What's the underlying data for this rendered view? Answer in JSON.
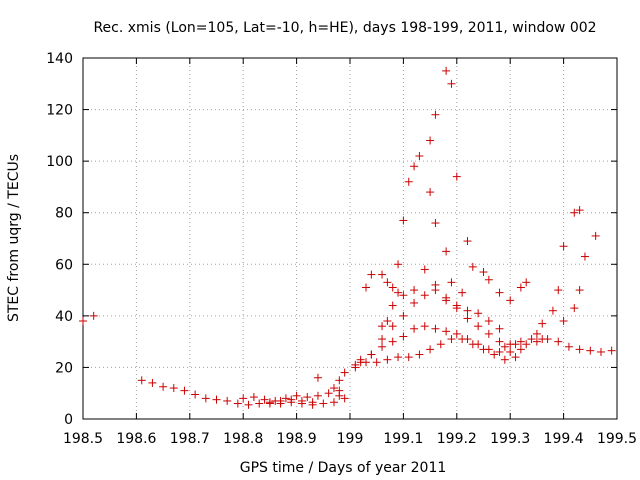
{
  "chart_data": {
    "type": "scatter",
    "title": "Rec. xmis (Lon=105, Lat=-10, h=HE), days 198-199, 2011, window 002",
    "xlabel": "GPS time / Days of year 2011",
    "ylabel": "STEC from uqrg / TECUs",
    "xlim": [
      198.5,
      199.5
    ],
    "ylim": [
      0,
      140
    ],
    "xticks": [
      198.5,
      198.6,
      198.7,
      198.8,
      198.9,
      199,
      199.1,
      199.2,
      199.3,
      199.4,
      199.5
    ],
    "xtick_labels": [
      "198.5",
      "198.6",
      "198.7",
      "198.8",
      "198.9",
      "199",
      "199.1",
      "199.2",
      "199.3",
      "199.4",
      "199.5"
    ],
    "yticks": [
      0,
      20,
      40,
      60,
      80,
      100,
      120,
      140
    ],
    "ytick_labels": [
      "0",
      "20",
      "40",
      "60",
      "80",
      "100",
      "120",
      "140"
    ],
    "marker_color": "#cc0000",
    "marker": "plus",
    "points": [
      [
        198.5,
        38
      ],
      [
        198.52,
        40
      ],
      [
        198.61,
        15
      ],
      [
        198.63,
        14
      ],
      [
        198.65,
        12.5
      ],
      [
        198.67,
        12
      ],
      [
        198.69,
        11
      ],
      [
        198.71,
        9.5
      ],
      [
        198.73,
        8
      ],
      [
        198.75,
        7.5
      ],
      [
        198.77,
        7
      ],
      [
        198.79,
        6
      ],
      [
        198.81,
        5.5
      ],
      [
        198.83,
        6
      ],
      [
        198.85,
        6.5
      ],
      [
        198.87,
        7
      ],
      [
        198.89,
        7.5
      ],
      [
        198.91,
        7
      ],
      [
        198.93,
        6.5
      ],
      [
        198.8,
        8
      ],
      [
        198.82,
        8.5
      ],
      [
        198.84,
        7.5
      ],
      [
        198.86,
        7
      ],
      [
        198.88,
        8
      ],
      [
        198.9,
        9
      ],
      [
        198.92,
        8.5
      ],
      [
        198.94,
        9
      ],
      [
        198.96,
        10
      ],
      [
        198.98,
        11
      ],
      [
        198.85,
        6
      ],
      [
        198.87,
        6
      ],
      [
        198.89,
        6.5
      ],
      [
        198.91,
        6
      ],
      [
        198.93,
        5.5
      ],
      [
        198.95,
        6
      ],
      [
        198.97,
        6.5
      ],
      [
        198.94,
        16
      ],
      [
        198.97,
        12
      ],
      [
        198.98,
        15
      ],
      [
        198.99,
        18
      ],
      [
        198.98,
        9
      ],
      [
        198.99,
        8
      ],
      [
        199.01,
        20
      ],
      [
        199.02,
        22
      ],
      [
        199.04,
        25
      ],
      [
        199.06,
        28
      ],
      [
        199.08,
        30
      ],
      [
        199.1,
        32
      ],
      [
        199.12,
        35
      ],
      [
        199.14,
        36
      ],
      [
        199.16,
        35
      ],
      [
        199.18,
        34
      ],
      [
        199.2,
        33
      ],
      [
        199.22,
        31
      ],
      [
        199.24,
        29
      ],
      [
        199.26,
        27
      ],
      [
        199.28,
        26
      ],
      [
        199.3,
        26
      ],
      [
        199.32,
        27
      ],
      [
        199.01,
        21
      ],
      [
        199.03,
        22
      ],
      [
        199.05,
        22
      ],
      [
        199.07,
        23
      ],
      [
        199.09,
        24
      ],
      [
        199.11,
        24
      ],
      [
        199.13,
        25
      ],
      [
        199.15,
        27
      ],
      [
        199.17,
        29
      ],
      [
        199.19,
        31
      ],
      [
        199.21,
        31
      ],
      [
        199.23,
        29
      ],
      [
        199.25,
        27
      ],
      [
        199.27,
        25
      ],
      [
        199.29,
        23
      ],
      [
        199.31,
        24
      ],
      [
        199.02,
        23
      ],
      [
        199.04,
        25
      ],
      [
        199.06,
        31
      ],
      [
        199.08,
        36
      ],
      [
        199.1,
        40
      ],
      [
        199.12,
        45
      ],
      [
        199.14,
        48
      ],
      [
        199.16,
        50
      ],
      [
        199.18,
        47
      ],
      [
        199.2,
        43
      ],
      [
        199.22,
        39
      ],
      [
        199.24,
        36
      ],
      [
        199.26,
        33
      ],
      [
        199.28,
        30
      ],
      [
        199.3,
        29
      ],
      [
        199.32,
        30
      ],
      [
        199.34,
        31
      ],
      [
        199.36,
        31
      ],
      [
        199.03,
        51
      ],
      [
        199.04,
        56
      ],
      [
        199.06,
        56
      ],
      [
        199.07,
        53
      ],
      [
        199.08,
        51
      ],
      [
        199.09,
        49
      ],
      [
        199.1,
        48
      ],
      [
        199.12,
        50
      ],
      [
        199.14,
        58
      ],
      [
        199.16,
        52
      ],
      [
        199.18,
        46
      ],
      [
        199.2,
        44
      ],
      [
        199.22,
        42
      ],
      [
        199.24,
        41
      ],
      [
        199.26,
        38
      ],
      [
        199.28,
        35
      ],
      [
        199.06,
        36
      ],
      [
        199.07,
        38
      ],
      [
        199.08,
        44
      ],
      [
        199.09,
        60
      ],
      [
        199.1,
        77
      ],
      [
        199.11,
        92
      ],
      [
        199.12,
        98
      ],
      [
        199.13,
        102
      ],
      [
        199.15,
        108
      ],
      [
        199.16,
        118
      ],
      [
        199.18,
        135
      ],
      [
        199.19,
        130
      ],
      [
        199.15,
        88
      ],
      [
        199.16,
        76
      ],
      [
        199.18,
        65
      ],
      [
        199.19,
        53
      ],
      [
        199.21,
        49
      ],
      [
        199.2,
        94
      ],
      [
        199.22,
        69
      ],
      [
        199.23,
        59
      ],
      [
        199.25,
        57
      ],
      [
        199.26,
        54
      ],
      [
        199.28,
        49
      ],
      [
        199.3,
        46
      ],
      [
        199.32,
        51
      ],
      [
        199.33,
        53
      ],
      [
        199.29,
        28
      ],
      [
        199.31,
        29
      ],
      [
        199.33,
        29
      ],
      [
        199.35,
        30
      ],
      [
        199.37,
        31
      ],
      [
        199.39,
        30
      ],
      [
        199.41,
        28
      ],
      [
        199.43,
        27
      ],
      [
        199.45,
        26.5
      ],
      [
        199.47,
        26
      ],
      [
        199.49,
        26.5
      ],
      [
        199.35,
        33
      ],
      [
        199.36,
        37
      ],
      [
        199.38,
        42
      ],
      [
        199.39,
        50
      ],
      [
        199.4,
        67
      ],
      [
        199.42,
        80
      ],
      [
        199.43,
        81
      ],
      [
        199.44,
        63
      ],
      [
        199.46,
        71
      ],
      [
        199.42,
        43
      ],
      [
        199.43,
        50
      ],
      [
        199.4,
        38
      ]
    ]
  }
}
